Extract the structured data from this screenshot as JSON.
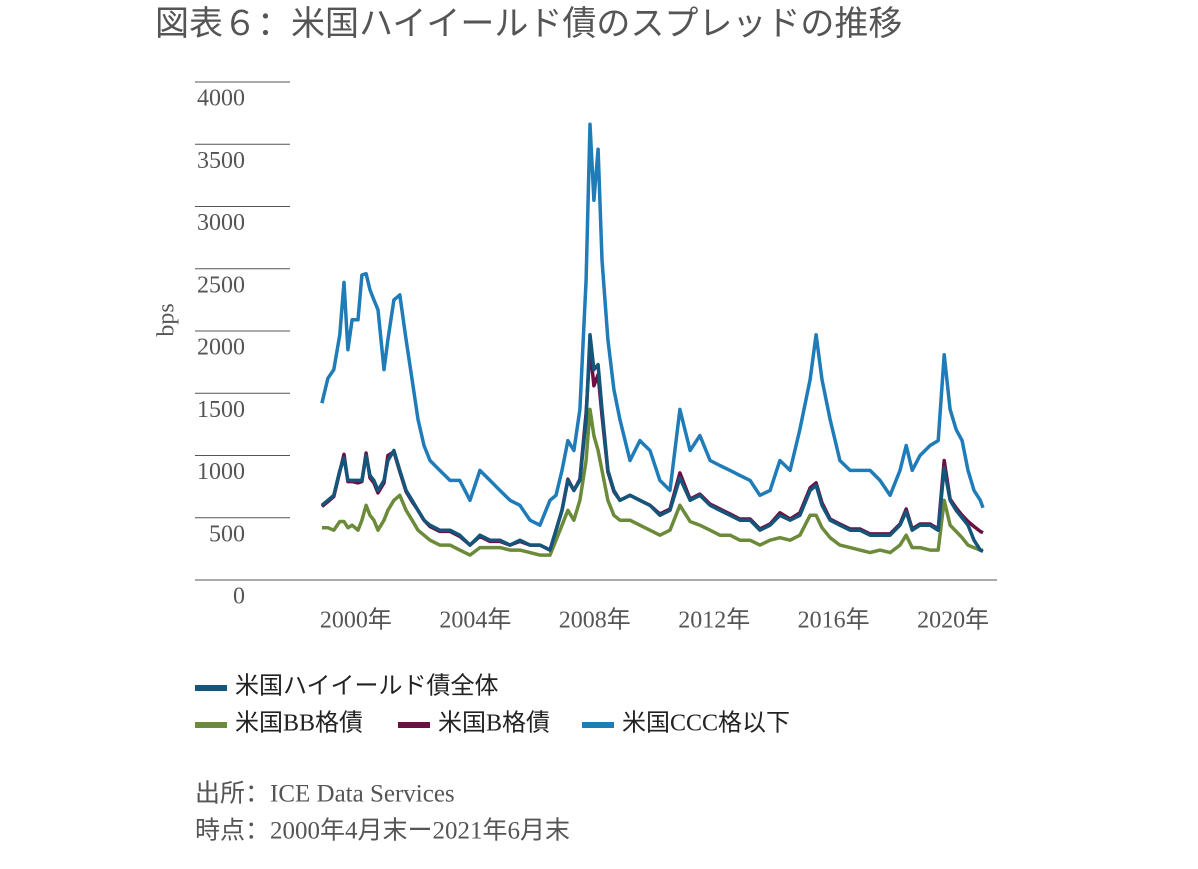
{
  "chart_data": {
    "type": "line",
    "title": "図表６：米国ハイイールド債のスプレッドの推移",
    "y_label": "bps",
    "source": "出所：ICE Data Services",
    "note": "時点：2000年4月末ー2021年6月末",
    "ylim": [
      0,
      4000
    ],
    "yticks": [
      0,
      500,
      1000,
      1500,
      2000,
      2500,
      3000,
      3500,
      4000
    ],
    "xlim": [
      1994.61,
      2021.47
    ],
    "xticks": [
      {
        "value": 2000,
        "label": "2000年"
      },
      {
        "value": 2004,
        "label": "2004年"
      },
      {
        "value": 2008,
        "label": "2008年"
      },
      {
        "value": 2012,
        "label": "2012年"
      },
      {
        "value": 2016,
        "label": "2016年"
      },
      {
        "value": 2020,
        "label": "2020年"
      }
    ],
    "x": [
      1998.86,
      1999.06,
      1999.26,
      1999.46,
      1999.6,
      1999.73,
      1999.87,
      2000.07,
      2000.2,
      2000.34,
      2000.47,
      2000.6,
      2000.74,
      2000.94,
      2001.07,
      2001.27,
      2001.47,
      2001.68,
      2001.88,
      2002.08,
      2002.28,
      2002.48,
      2002.81,
      2003.15,
      2003.48,
      2003.82,
      2004.15,
      2004.49,
      2004.82,
      2005.16,
      2005.49,
      2005.83,
      2006.16,
      2006.5,
      2006.7,
      2006.9,
      2007.1,
      2007.3,
      2007.5,
      2007.71,
      2007.84,
      2007.97,
      2008.11,
      2008.24,
      2008.44,
      2008.64,
      2008.84,
      2009.18,
      2009.51,
      2009.85,
      2010.18,
      2010.52,
      2010.85,
      2011.19,
      2011.52,
      2011.86,
      2012.19,
      2012.53,
      2012.86,
      2013.2,
      2013.53,
      2013.87,
      2014.2,
      2014.54,
      2014.87,
      2015.21,
      2015.41,
      2015.61,
      2015.88,
      2016.21,
      2016.55,
      2016.88,
      2017.22,
      2017.55,
      2017.89,
      2018.22,
      2018.43,
      2018.63,
      2018.89,
      2019.23,
      2019.5,
      2019.7,
      2019.9,
      2020.1,
      2020.3,
      2020.5,
      2020.7,
      2020.91,
      2021.0
    ],
    "series": [
      {
        "name": "米国ハイイールド債全体",
        "color": "#15557a",
        "values": [
          600,
          640,
          680,
          880,
          980,
          800,
          800,
          800,
          800,
          1000,
          840,
          800,
          720,
          800,
          960,
          1040,
          880,
          720,
          640,
          560,
          480,
          440,
          400,
          400,
          360,
          280,
          360,
          320,
          320,
          280,
          320,
          280,
          280,
          240,
          400,
          560,
          800,
          720,
          800,
          1290,
          1970,
          1690,
          1730,
          1370,
          880,
          720,
          640,
          680,
          640,
          600,
          520,
          560,
          820,
          640,
          680,
          600,
          560,
          520,
          480,
          480,
          400,
          440,
          520,
          480,
          520,
          720,
          760,
          600,
          480,
          440,
          400,
          400,
          360,
          360,
          360,
          440,
          550,
          400,
          440,
          440,
          400,
          900,
          640,
          560,
          500,
          440,
          320,
          240,
          230
        ]
      },
      {
        "name": "米国BB格債",
        "color": "#6b8b3a",
        "values": [
          420,
          420,
          400,
          470,
          470,
          420,
          440,
          400,
          480,
          600,
          520,
          480,
          400,
          480,
          560,
          640,
          680,
          560,
          480,
          400,
          360,
          320,
          280,
          280,
          240,
          200,
          260,
          260,
          260,
          240,
          240,
          220,
          200,
          200,
          320,
          440,
          560,
          480,
          640,
          960,
          1370,
          1160,
          1040,
          880,
          640,
          520,
          480,
          480,
          440,
          400,
          360,
          400,
          600,
          470,
          440,
          400,
          360,
          360,
          320,
          320,
          280,
          320,
          340,
          320,
          360,
          520,
          520,
          420,
          340,
          280,
          260,
          240,
          220,
          240,
          220,
          280,
          360,
          260,
          260,
          240,
          240,
          640,
          440,
          390,
          340,
          280,
          260,
          240,
          240
        ]
      },
      {
        "name": "米国B格債",
        "color": "#6a1142",
        "values": [
          590,
          630,
          670,
          870,
          1010,
          790,
          790,
          780,
          790,
          1020,
          820,
          780,
          700,
          780,
          1000,
          1030,
          870,
          710,
          630,
          560,
          480,
          430,
          390,
          390,
          350,
          280,
          350,
          310,
          310,
          280,
          310,
          280,
          280,
          240,
          400,
          560,
          810,
          720,
          810,
          1340,
          1870,
          1560,
          1650,
          1320,
          870,
          710,
          640,
          680,
          640,
          600,
          530,
          570,
          860,
          650,
          690,
          610,
          570,
          530,
          490,
          490,
          410,
          450,
          540,
          490,
          540,
          740,
          780,
          620,
          490,
          450,
          410,
          410,
          370,
          370,
          370,
          450,
          570,
          410,
          450,
          450,
          410,
          960,
          650,
          580,
          520,
          470,
          430,
          390,
          380
        ]
      },
      {
        "name": "米国CCC格以下",
        "color": "#1f7cb8",
        "values": [
          1420,
          1620,
          1690,
          1970,
          2390,
          1850,
          2090,
          2090,
          2450,
          2460,
          2330,
          2250,
          2170,
          1690,
          1930,
          2250,
          2290,
          1930,
          1610,
          1290,
          1080,
          960,
          880,
          800,
          800,
          640,
          880,
          800,
          720,
          640,
          600,
          480,
          440,
          640,
          680,
          880,
          1120,
          1040,
          1370,
          2410,
          3660,
          3050,
          3460,
          2570,
          1930,
          1530,
          1290,
          960,
          1120,
          1040,
          800,
          720,
          1370,
          1040,
          1160,
          960,
          920,
          880,
          840,
          800,
          680,
          720,
          960,
          880,
          1210,
          1610,
          1970,
          1610,
          1290,
          960,
          880,
          880,
          880,
          800,
          680,
          880,
          1080,
          880,
          1000,
          1080,
          1120,
          1810,
          1370,
          1210,
          1120,
          880,
          720,
          640,
          580
        ]
      }
    ]
  }
}
